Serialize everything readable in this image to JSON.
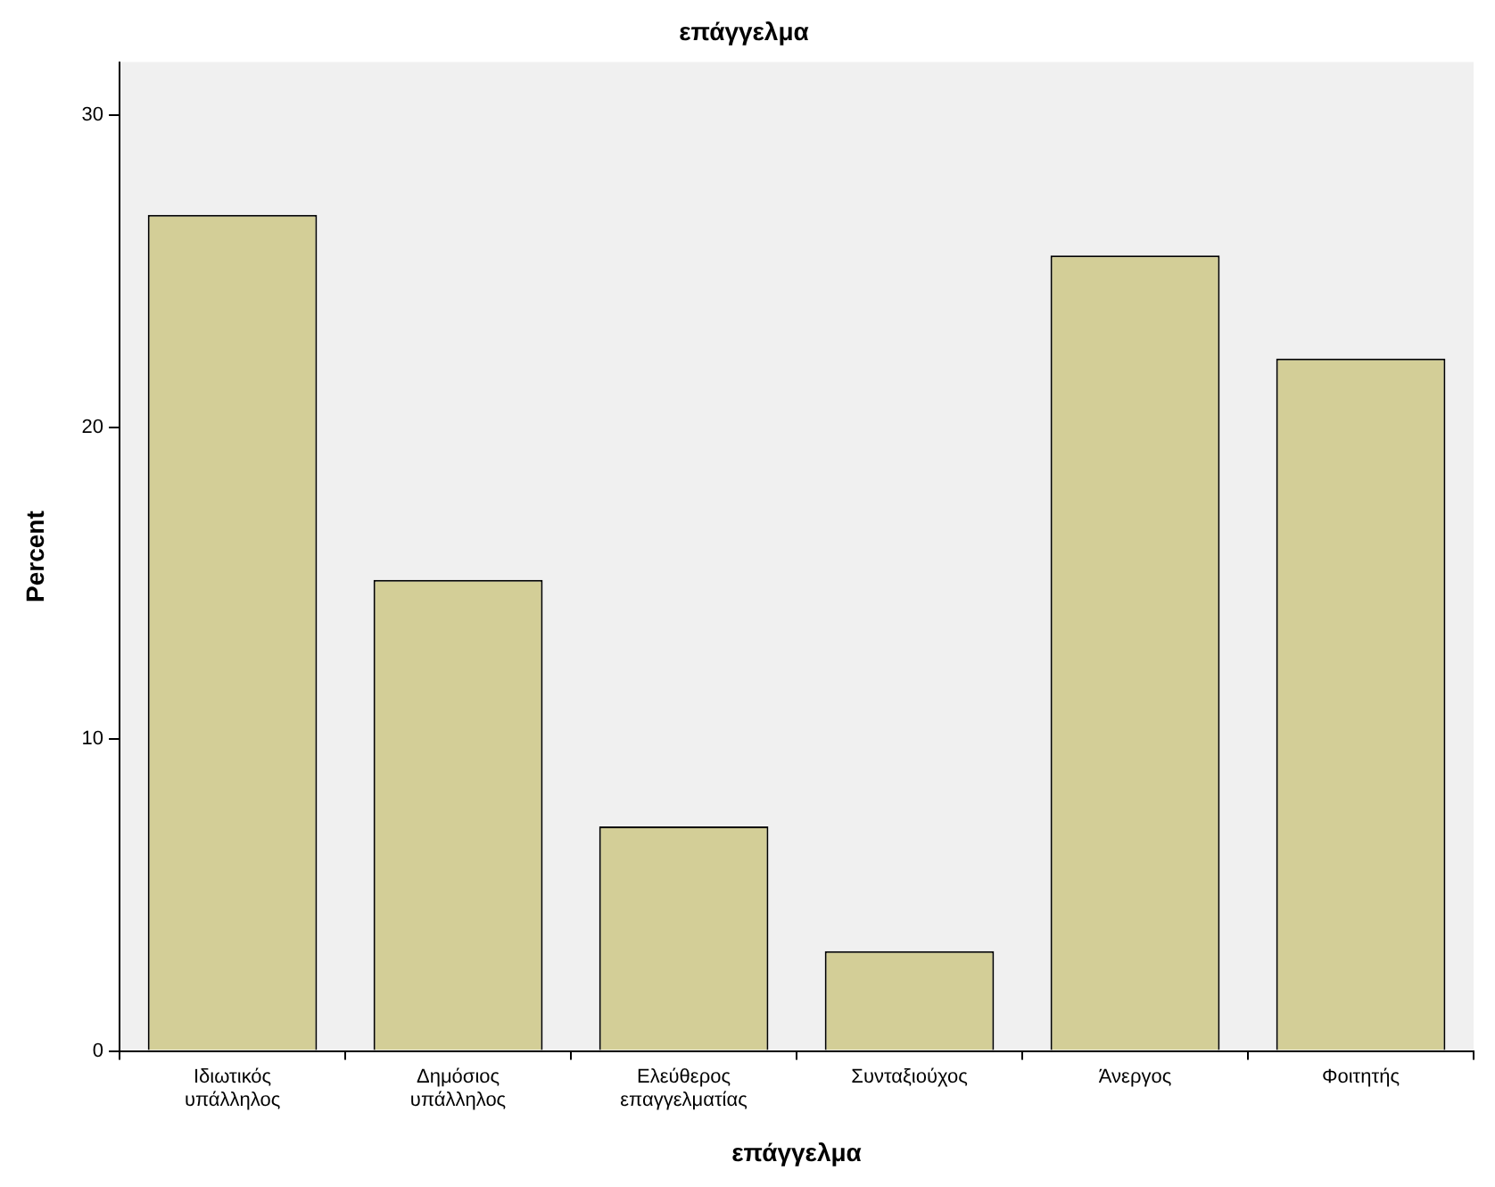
{
  "chart_data": {
    "type": "bar",
    "title": "επάγγελμα",
    "xlabel": "επάγγελμα",
    "ylabel": "Percent",
    "categories": [
      "Ιδιωτικός υπάλληλος",
      "Δημόσιος υπάλληλος",
      "Ελεύθερος επαγγελματίας",
      "Συνταξιούχος",
      "Άνεργος",
      "Φοιτητής"
    ],
    "values": [
      26.8,
      15.1,
      7.2,
      3.2,
      25.5,
      22.2
    ],
    "color": "#d3ce97",
    "ylim": [
      0,
      31.7
    ],
    "yticks": [
      0,
      10,
      20,
      30
    ],
    "grid": false,
    "legend": false
  }
}
